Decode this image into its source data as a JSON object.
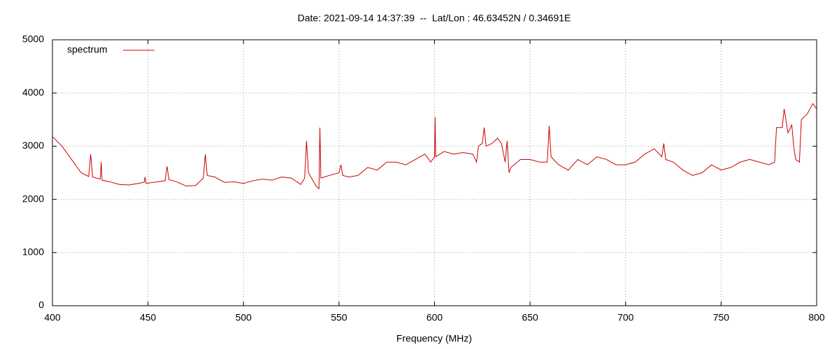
{
  "chart_data": {
    "type": "line",
    "title": "Date: 2021-09-14 14:37:39  --  Lat/Lon : 46.63452N / 0.34691E",
    "x_label": "Frequency (MHz)",
    "x": [
      400,
      405,
      410,
      415,
      419,
      420,
      421,
      425,
      425.5,
      426,
      430,
      435,
      440,
      445,
      448,
      448.5,
      449,
      455,
      459,
      460,
      461,
      465,
      470,
      475,
      479,
      480,
      481,
      485,
      490,
      495,
      500,
      505,
      510,
      515,
      520,
      525,
      530,
      532,
      533,
      534,
      538,
      539.5,
      540,
      540.5,
      545,
      550,
      551,
      552,
      555,
      560,
      565,
      570,
      575,
      580,
      585,
      590,
      595,
      598,
      600,
      600.3,
      600.6,
      605,
      610,
      615,
      620,
      622,
      623,
      625,
      626,
      627,
      630,
      633,
      635,
      637,
      638,
      639,
      640,
      645,
      650,
      655,
      659,
      660,
      661,
      665,
      670,
      675,
      680,
      685,
      690,
      695,
      700,
      705,
      710,
      715,
      719,
      720,
      721,
      725,
      730,
      735,
      740,
      745,
      750,
      755,
      760,
      765,
      770,
      775,
      778,
      779,
      782,
      783,
      785,
      787,
      788,
      789,
      791,
      792,
      795,
      798,
      800
    ],
    "series": [
      {
        "name": "spectrum",
        "color": "#cc0000",
        "values": [
          3180,
          3000,
          2750,
          2500,
          2430,
          2850,
          2420,
          2380,
          2700,
          2360,
          2330,
          2280,
          2270,
          2300,
          2320,
          2420,
          2300,
          2330,
          2350,
          2620,
          2370,
          2330,
          2250,
          2260,
          2400,
          2850,
          2450,
          2420,
          2320,
          2330,
          2300,
          2350,
          2380,
          2360,
          2420,
          2400,
          2280,
          2400,
          3100,
          2500,
          2250,
          2200,
          3350,
          2400,
          2450,
          2500,
          2650,
          2450,
          2420,
          2450,
          2600,
          2550,
          2700,
          2700,
          2650,
          2750,
          2850,
          2700,
          2800,
          3550,
          2800,
          2900,
          2850,
          2880,
          2850,
          2700,
          3000,
          3050,
          3350,
          3000,
          3050,
          3150,
          3050,
          2700,
          3100,
          2500,
          2600,
          2750,
          2750,
          2700,
          2700,
          3380,
          2800,
          2650,
          2550,
          2750,
          2650,
          2800,
          2750,
          2650,
          2650,
          2700,
          2850,
          2950,
          2800,
          3050,
          2750,
          2700,
          2550,
          2450,
          2500,
          2650,
          2550,
          2600,
          2700,
          2750,
          2700,
          2650,
          2700,
          3350,
          3350,
          3700,
          3250,
          3400,
          3000,
          2750,
          2700,
          3500,
          3600,
          3800,
          3700
        ]
      }
    ],
    "xlim": [
      400,
      800
    ],
    "xticks": [
      400,
      450,
      500,
      550,
      600,
      650,
      700,
      750,
      800
    ],
    "ylim": [
      0,
      5000
    ],
    "yticks": [
      0,
      1000,
      2000,
      3000,
      4000,
      5000
    ],
    "grid": true,
    "legend": "top-left"
  }
}
